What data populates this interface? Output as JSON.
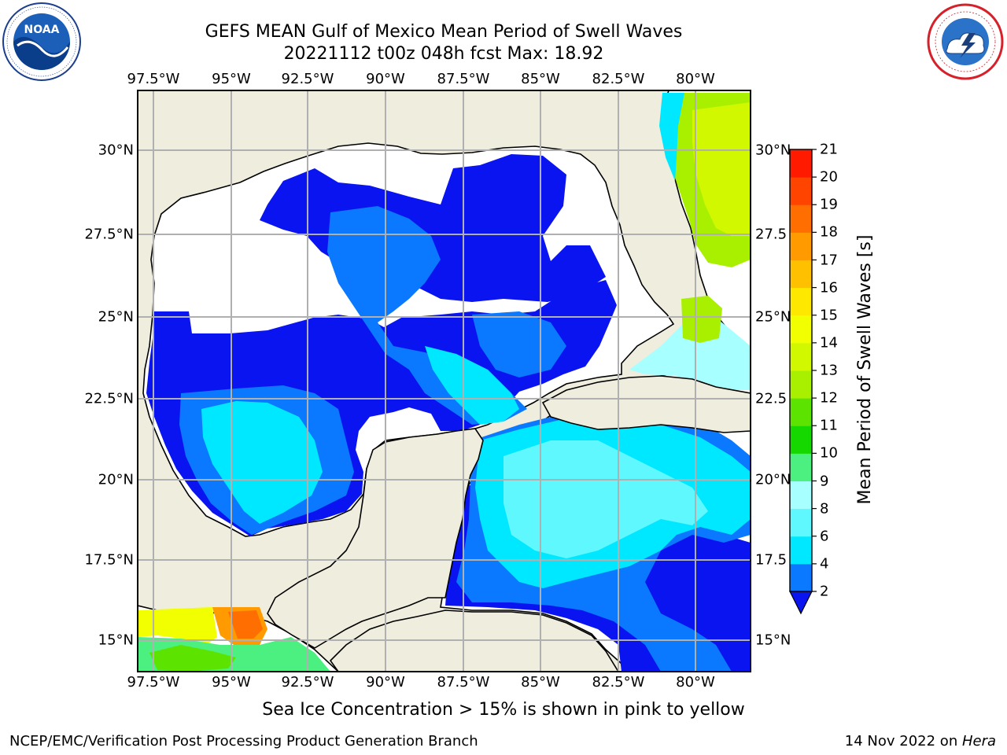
{
  "header": {
    "title_line1": "GEFS MEAN Gulf of Mexico Mean Period of Swell Waves",
    "title_line2": "20221112 t00z 048h fcst   Max: 18.92"
  },
  "logos": {
    "left": "noaa-logo",
    "right": "nws-logo",
    "nws_text": "NATIONAL WEATHER SERVICE"
  },
  "map": {
    "lon_labels": [
      "97.5°W",
      "95°W",
      "92.5°W",
      "90°W",
      "87.5°W",
      "85°W",
      "82.5°W",
      "80°W"
    ],
    "lat_labels_left": [
      "30°N",
      "27.5°N",
      "25°N",
      "22.5°N",
      "20°N",
      "17.5°N",
      "15°N"
    ],
    "lat_labels_right": [
      "30°N",
      "27.5",
      "25°N",
      "22.5",
      "20°N",
      "17.5",
      "15°N"
    ],
    "lon_range": [
      -98,
      -78
    ],
    "lat_range": [
      14,
      32
    ],
    "colors": {
      "land": "#efedde",
      "grid": "#b0b0b0",
      "no_data": "#ffffff"
    }
  },
  "colorbar": {
    "title": "Mean Period of Swell Waves [s]",
    "ticks": [
      "2",
      "4",
      "6",
      "8",
      "9",
      "10",
      "11",
      "12",
      "13",
      "14",
      "15",
      "16",
      "17",
      "18",
      "19",
      "20",
      "21"
    ],
    "colors": [
      "#0a78ff",
      "#00e8ff",
      "#5ff8ff",
      "#a8ffff",
      "#4cf080",
      "#14d800",
      "#5ce400",
      "#a8f000",
      "#d2f800",
      "#f2ff00",
      "#ffe800",
      "#ffc000",
      "#ff9a00",
      "#ff6e00",
      "#ff4400",
      "#ff1a00"
    ],
    "under_color": "#0a14f0"
  },
  "note": "Sea Ice Concentration > 15% is shown in pink to yellow",
  "footer": {
    "left": "NCEP/EMC/Verification Post Processing Product Generation Branch",
    "right_prefix": "14 Nov 2022 on ",
    "right_machine": "Hera"
  }
}
